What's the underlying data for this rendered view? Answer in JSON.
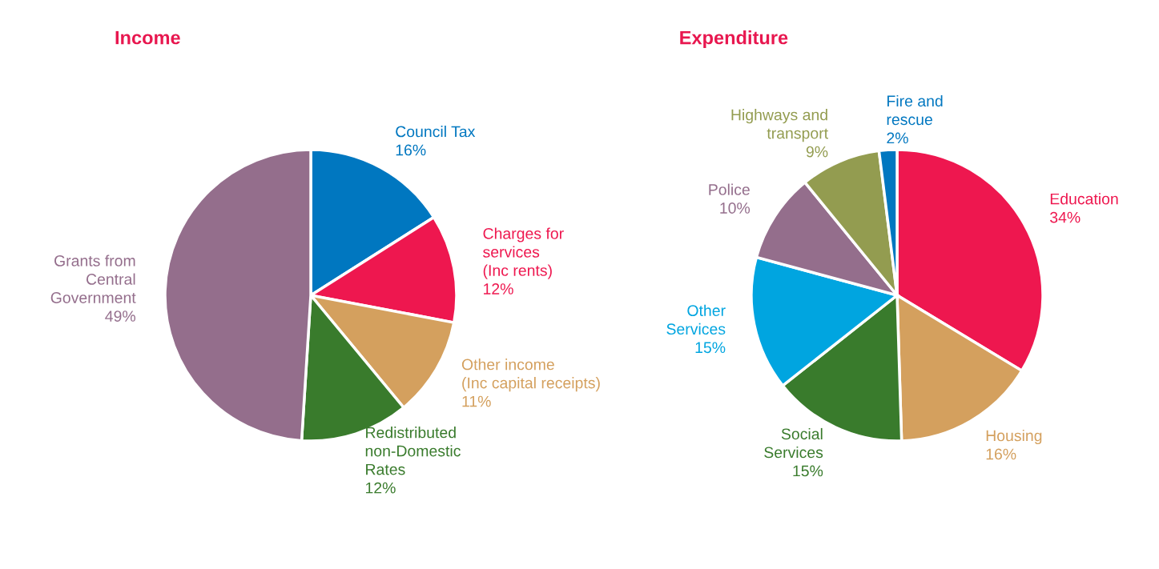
{
  "chart_data": [
    {
      "type": "pie",
      "title": "Income",
      "categories": [
        "Council Tax",
        "Charges for\nservices\n(Inc rents)",
        "Other income\n(Inc capital receipts)",
        "Redistributed\nnon-Domestic\nRates",
        "Grants from\nCentral\nGovernment"
      ],
      "values": [
        16,
        12,
        11,
        12,
        49
      ],
      "value_labels": [
        "16%",
        "12%",
        "11%",
        "12%",
        "49%"
      ],
      "colors": [
        "#0077c0",
        "#ee174f",
        "#d4a05e",
        "#397b2c",
        "#946e8c"
      ],
      "legend": false
    },
    {
      "type": "pie",
      "title": "Expenditure",
      "categories": [
        "Education",
        "Housing",
        "Social\nServices",
        "Other\nServices",
        "Police",
        "Highways and\ntransport",
        "Fire and\nrescue"
      ],
      "values": [
        34,
        16,
        15,
        15,
        10,
        9,
        2
      ],
      "value_labels": [
        "34%",
        "16%",
        "15%",
        "15%",
        "10%",
        "9%",
        "2%"
      ],
      "colors": [
        "#ee174f",
        "#d4a05e",
        "#397b2c",
        "#00a5e0",
        "#946e8c",
        "#939c50",
        "#0077c0"
      ],
      "legend": false
    }
  ]
}
